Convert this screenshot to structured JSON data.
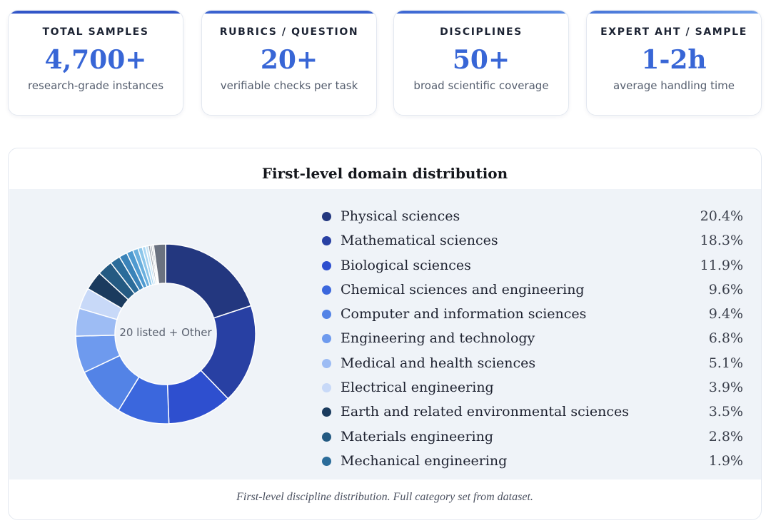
{
  "stats": [
    {
      "label": "TOTAL SAMPLES",
      "value": "4,700+",
      "sub": "research-grade instances"
    },
    {
      "label": "RUBRICS / QUESTION",
      "value": "20+",
      "sub": "verifiable checks per task"
    },
    {
      "label": "DISCIPLINES",
      "value": "50+",
      "sub": "broad scientific coverage"
    },
    {
      "label": "EXPERT AHT / SAMPLE",
      "value": "1-2h",
      "sub": "average handling time"
    }
  ],
  "chart_data": {
    "type": "pie",
    "title": "First-level domain distribution",
    "center_label": "20 listed + Other",
    "caption": "First-level discipline distribution. Full category set from dataset.",
    "legend_items": [
      {
        "name": "Physical sciences",
        "label": "20.4%",
        "value": 20.4,
        "color": "#23377f"
      },
      {
        "name": "Mathematical sciences",
        "label": "18.3%",
        "value": 18.3,
        "color": "#2840a3"
      },
      {
        "name": "Biological sciences",
        "label": "11.9%",
        "value": 11.9,
        "color": "#2e4fcf"
      },
      {
        "name": "Chemical sciences and engineering",
        "label": "9.6%",
        "value": 9.6,
        "color": "#3b67dd"
      },
      {
        "name": "Computer and information sciences",
        "label": "9.4%",
        "value": 9.4,
        "color": "#5383e6"
      },
      {
        "name": "Engineering and technology",
        "label": "6.8%",
        "value": 6.8,
        "color": "#6e9aee"
      },
      {
        "name": "Medical and health sciences",
        "label": "5.1%",
        "value": 5.1,
        "color": "#9dbcf4"
      },
      {
        "name": "Electrical engineering",
        "label": "3.9%",
        "value": 3.9,
        "color": "#c8d9f8"
      },
      {
        "name": "Earth and related environmental sciences",
        "label": "3.5%",
        "value": 3.5,
        "color": "#1b3b5e"
      },
      {
        "name": "Materials engineering",
        "label": "2.8%",
        "value": 2.8,
        "color": "#245a82"
      },
      {
        "name": "Mechanical engineering",
        "label": "1.9%",
        "value": 1.9,
        "color": "#2b6c9a"
      }
    ],
    "other_slices": [
      {
        "value": 1.5,
        "color": "#3a83b9"
      },
      {
        "value": 1.2,
        "color": "#4f9ad0"
      },
      {
        "value": 1.0,
        "color": "#6bb0de"
      },
      {
        "value": 0.8,
        "color": "#8cc6ea"
      },
      {
        "value": 0.6,
        "color": "#aad6f2"
      },
      {
        "value": 0.5,
        "color": "#c6e3f5"
      },
      {
        "value": 0.4,
        "color": "#9aa3ad"
      },
      {
        "value": 0.3,
        "color": "#7f8894"
      },
      {
        "value": 0.3,
        "color": "#b3bac2"
      },
      {
        "value": 2.2,
        "color": "#6b7280"
      }
    ]
  }
}
